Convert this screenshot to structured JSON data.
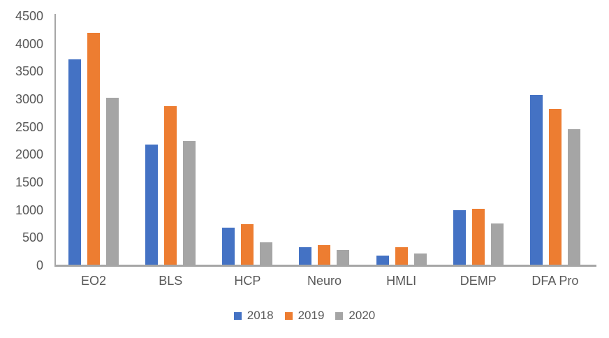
{
  "chart_data": {
    "type": "bar",
    "title": "",
    "xlabel": "",
    "ylabel": "",
    "categories": [
      "EO2",
      "BLS",
      "HCP",
      "Neuro",
      "HMLI",
      "DEMP",
      "DFA Pro"
    ],
    "series": [
      {
        "name": "2018",
        "color": "#4472C4",
        "values": [
          3720,
          2180,
          680,
          330,
          180,
          1000,
          3080
        ]
      },
      {
        "name": "2019",
        "color": "#ED7D31",
        "values": [
          4200,
          2870,
          740,
          370,
          330,
          1020,
          2820
        ]
      },
      {
        "name": "2020",
        "color": "#A5A5A5",
        "values": [
          3030,
          2250,
          410,
          280,
          210,
          760,
          2460
        ]
      }
    ],
    "ylim": [
      0,
      4500
    ],
    "ytick_step": 500,
    "yticks": [
      0,
      500,
      1000,
      1500,
      2000,
      2500,
      3000,
      3500,
      4000,
      4500
    ],
    "grid": false,
    "legend_position": "bottom"
  },
  "colors": {
    "axis_line": "#A6A6A6",
    "tick_text": "#595959",
    "background": "#FFFFFF"
  }
}
